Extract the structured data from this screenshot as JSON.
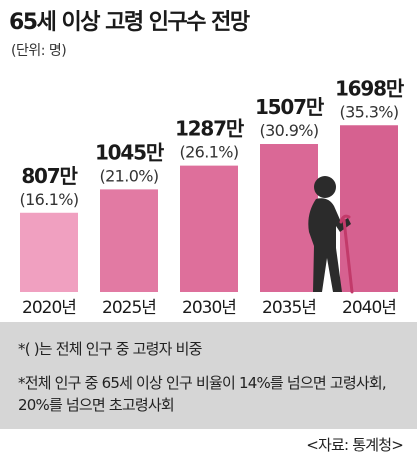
{
  "title": "65세 이상 고령 인구수 전망",
  "unit_label": "(단위: 명)",
  "colors": {
    "bar_2020": "#f0a0c0",
    "bar_2025": "#e27aa3",
    "bar_2030": "#de6f9b",
    "bar_2035": "#da6896",
    "bar_2040": "#d66190",
    "notes_background": "#d6d6d6",
    "figure": "#2b2b2b",
    "cane": "#c23a6a"
  },
  "chart_data": {
    "type": "bar",
    "categories": [
      "2020년",
      "2025년",
      "2030년",
      "2035년",
      "2040년"
    ],
    "values": [
      807,
      1045,
      1287,
      1507,
      1698
    ],
    "value_labels": [
      "807만",
      "1045만",
      "1287만",
      "1507만",
      "1698만"
    ],
    "percent_labels": [
      "(16.1%)",
      "(21.0%)",
      "(26.1%)",
      "(30.9%)",
      "(35.3%)"
    ],
    "percentages": [
      16.1,
      21.0,
      26.1,
      30.9,
      35.3
    ],
    "title": "65세 이상 고령 인구수 전망",
    "grid": false
  },
  "icon": "elderly-person-with-cane-icon",
  "notes": [
    "*(  )는 전체 인구 중 고령자 비중",
    "*전체 인구 중 65세 이상 인구 비율이 14%를 넘으면 고령사회, 20%를 넘으면 초고령사회"
  ],
  "source": "<자료: 통계청>"
}
